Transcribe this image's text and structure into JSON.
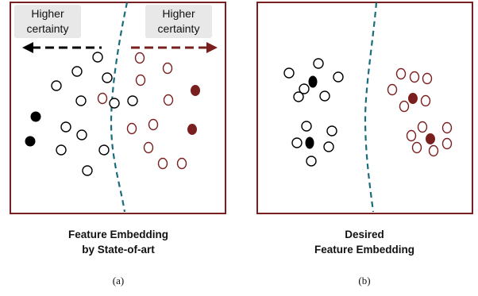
{
  "panel_a": {
    "callout_left": [
      "Higher",
      "certainty"
    ],
    "callout_right": [
      "Higher",
      "certainty"
    ],
    "caption": [
      "Feature Embedding",
      "by State-of-art"
    ],
    "sublabel": "(a)"
  },
  "panel_b": {
    "caption": [
      "Desired",
      "Feature Embedding"
    ],
    "sublabel": "(b)"
  },
  "colors": {
    "class_black": "#000000",
    "class_red": "#7a1f1f",
    "boundary": "#1b6b7e",
    "frame": "#7a1f1f"
  }
}
